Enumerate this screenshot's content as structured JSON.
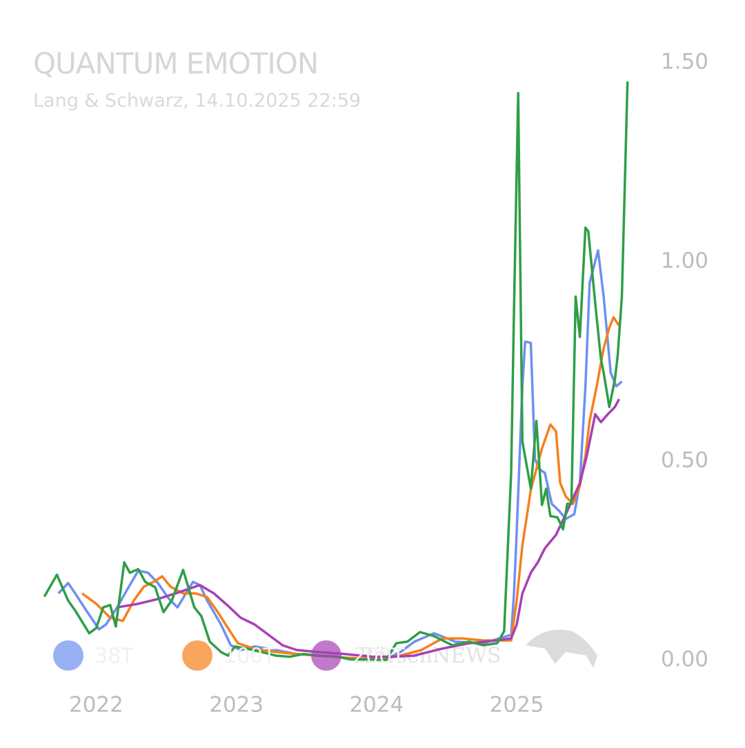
{
  "chart_data": {
    "type": "line",
    "title": "QUANTUM EMOTION",
    "subtitle": "Lang & Schwarz, 14.10.2025 22:59",
    "watermark": "BörsenNEWS",
    "series": [
      {
        "name": "38T",
        "color": "#6f8ff0",
        "x": [
          2021.73,
          2021.8,
          2021.85,
          2021.93,
          2022.02,
          2022.07,
          2022.15,
          2022.22,
          2022.3,
          2022.37,
          2022.44,
          2022.52,
          2022.58,
          2022.64,
          2022.69,
          2022.74,
          2022.79,
          2022.89,
          2022.96,
          2023.03,
          2023.13,
          2023.28,
          2023.43,
          2023.58,
          2023.72,
          2023.87,
          2024.07,
          2024.17,
          2024.27,
          2024.41,
          2024.56,
          2024.76,
          2024.96,
          2024.98,
          2025.0,
          2025.04,
          2025.06,
          2025.1,
          2025.13,
          2025.16,
          2025.2,
          2025.25,
          2025.3,
          2025.35,
          2025.41,
          2025.45,
          2025.49,
          2025.52,
          2025.58,
          2025.62,
          2025.67,
          2025.71,
          2025.75
        ],
        "values": [
          0.168,
          0.194,
          0.168,
          0.125,
          0.078,
          0.09,
          0.133,
          0.177,
          0.225,
          0.22,
          0.194,
          0.154,
          0.133,
          0.168,
          0.197,
          0.189,
          0.151,
          0.09,
          0.038,
          0.026,
          0.035,
          0.026,
          0.016,
          0.012,
          0.009,
          0.003,
          0.003,
          0.021,
          0.047,
          0.068,
          0.047,
          0.043,
          0.064,
          0.168,
          0.324,
          0.688,
          0.8,
          0.797,
          0.506,
          0.48,
          0.471,
          0.393,
          0.376,
          0.355,
          0.367,
          0.445,
          0.688,
          0.948,
          1.029,
          0.913,
          0.722,
          0.688,
          0.7
        ]
      },
      {
        "name": "100T",
        "color": "#f77f1a",
        "x": [
          2021.9,
          2022.0,
          2022.1,
          2022.19,
          2022.27,
          2022.34,
          2022.42,
          2022.47,
          2022.53,
          2022.62,
          2022.71,
          2022.79,
          2022.86,
          2022.94,
          2023.01,
          2023.13,
          2023.28,
          2023.43,
          2023.58,
          2023.77,
          2024.02,
          2024.17,
          2024.32,
          2024.47,
          2024.61,
          2024.76,
          2024.96,
          2025.0,
          2025.04,
          2025.1,
          2025.18,
          2025.24,
          2025.28,
          2025.31,
          2025.35,
          2025.4,
          2025.45,
          2025.49,
          2025.52,
          2025.57,
          2025.62,
          2025.66,
          2025.69,
          2025.73
        ],
        "values": [
          0.168,
          0.142,
          0.107,
          0.099,
          0.151,
          0.185,
          0.199,
          0.211,
          0.185,
          0.168,
          0.168,
          0.159,
          0.125,
          0.081,
          0.043,
          0.029,
          0.021,
          0.016,
          0.012,
          0.007,
          0.003,
          0.012,
          0.026,
          0.055,
          0.055,
          0.05,
          0.05,
          0.151,
          0.289,
          0.428,
          0.532,
          0.592,
          0.575,
          0.445,
          0.411,
          0.393,
          0.437,
          0.514,
          0.601,
          0.688,
          0.783,
          0.835,
          0.861,
          0.84
        ]
      },
      {
        "name": "200T",
        "color": "#a640b4",
        "x": [
          2022.15,
          2022.3,
          2022.44,
          2022.59,
          2022.74,
          2022.84,
          2022.94,
          2023.03,
          2023.13,
          2023.23,
          2023.33,
          2023.43,
          2023.58,
          2023.77,
          2023.97,
          2024.12,
          2024.27,
          2024.46,
          2024.66,
          2024.86,
          2024.96,
          2025.0,
          2025.04,
          2025.1,
          2025.15,
          2025.2,
          2025.28,
          2025.35,
          2025.45,
          2025.5,
          2025.56,
          2025.6,
          2025.65,
          2025.7,
          2025.73
        ],
        "values": [
          0.133,
          0.142,
          0.154,
          0.171,
          0.189,
          0.168,
          0.137,
          0.107,
          0.09,
          0.064,
          0.038,
          0.026,
          0.021,
          0.016,
          0.009,
          0.009,
          0.012,
          0.029,
          0.043,
          0.05,
          0.055,
          0.09,
          0.168,
          0.22,
          0.246,
          0.281,
          0.315,
          0.367,
          0.445,
          0.514,
          0.618,
          0.598,
          0.618,
          0.636,
          0.656
        ]
      },
      {
        "color": "#2f9e48",
        "x": [
          2021.63,
          2021.72,
          2021.8,
          2021.85,
          2021.95,
          2022.0,
          2022.05,
          2022.1,
          2022.14,
          2022.2,
          2022.24,
          2022.3,
          2022.35,
          2022.42,
          2022.48,
          2022.54,
          2022.62,
          2022.7,
          2022.75,
          2022.81,
          2022.89,
          2022.94,
          2022.99,
          2023.08,
          2023.18,
          2023.28,
          2023.38,
          2023.48,
          2023.58,
          2023.72,
          2023.82,
          2023.92,
          2024.07,
          2024.14,
          2024.22,
          2024.31,
          2024.41,
          2024.54,
          2024.66,
          2024.76,
          2024.86,
          2024.91,
          2024.96,
          2024.98,
          2025.01,
          2025.04,
          2025.08,
          2025.1,
          2025.14,
          2025.18,
          2025.21,
          2025.24,
          2025.29,
          2025.33,
          2025.36,
          2025.39,
          2025.42,
          2025.45,
          2025.49,
          2025.51,
          2025.56,
          2025.6,
          2025.62,
          2025.66,
          2025.7,
          2025.72,
          2025.75,
          2025.79
        ],
        "values": [
          0.16,
          0.215,
          0.15,
          0.125,
          0.068,
          0.081,
          0.133,
          0.139,
          0.085,
          0.246,
          0.22,
          0.229,
          0.197,
          0.184,
          0.121,
          0.151,
          0.227,
          0.133,
          0.111,
          0.047,
          0.021,
          0.012,
          0.035,
          0.029,
          0.021,
          0.012,
          0.009,
          0.016,
          0.012,
          0.009,
          0.002,
          0.002,
          0.001,
          0.043,
          0.047,
          0.071,
          0.061,
          0.038,
          0.047,
          0.038,
          0.043,
          0.073,
          0.471,
          0.878,
          1.424,
          0.549,
          0.471,
          0.431,
          0.601,
          0.39,
          0.431,
          0.362,
          0.359,
          0.329,
          0.393,
          0.393,
          0.913,
          0.812,
          1.086,
          1.077,
          0.896,
          0.757,
          0.722,
          0.636,
          0.705,
          0.766,
          0.913,
          1.453
        ]
      }
    ],
    "xlim": [
      2021.55,
      2025.89
    ],
    "xticks": [
      2022,
      2023,
      2024,
      2025
    ],
    "ylim": [
      0,
      1.5
    ],
    "yticks": [
      {
        "value": 0,
        "label": "0.00"
      },
      {
        "value": 0.5,
        "label": "0.50"
      },
      {
        "value": 1,
        "label": "1.00"
      },
      {
        "value": 1.5,
        "label": "1.50"
      }
    ],
    "grid": false
  }
}
